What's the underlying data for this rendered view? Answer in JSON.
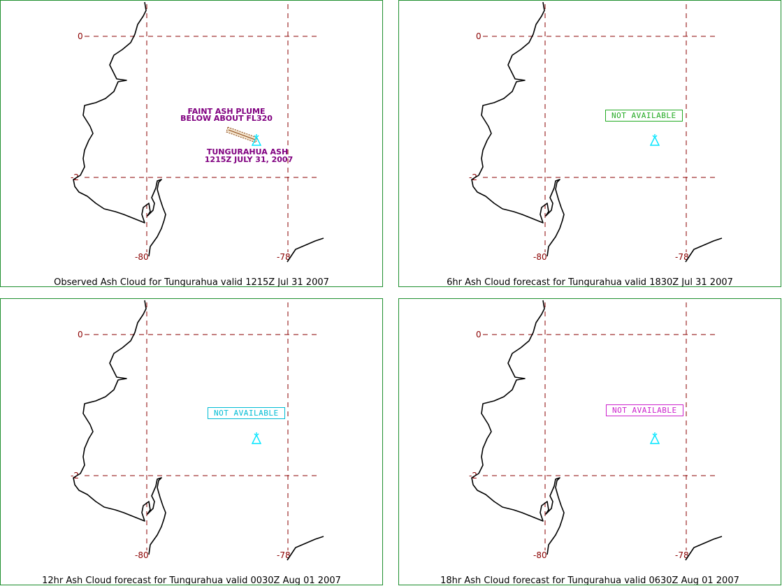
{
  "panels": [
    {
      "caption": "Observed Ash Cloud for Tungurahua valid 1215Z Jul 31 2007",
      "status": null,
      "annotations": {
        "plume_line1": "FAINT ASH PLUME",
        "plume_line2": "BELOW ABOUT FL320",
        "volcano_line1": "TUNGURAHUA ASH",
        "volcano_line2": "1215Z JULY 31, 2007"
      }
    },
    {
      "caption": "6hr Ash Cloud forecast for Tungurahua valid 1830Z Jul 31 2007",
      "status": "NOT AVAILABLE",
      "status_color": "#22aa22"
    },
    {
      "caption": "12hr Ash Cloud forecast for Tungurahua valid 0030Z Aug 01 2007",
      "status": "NOT AVAILABLE",
      "status_color": "#00bcd4"
    },
    {
      "caption": "18hr Ash Cloud forecast for Tungurahua valid 0630Z Aug 01 2007",
      "status": "NOT AVAILABLE",
      "status_color": "#cc22cc"
    }
  ],
  "axes": {
    "lat_labels": [
      "0",
      "-2"
    ],
    "lon_labels": [
      "-80",
      "-78"
    ]
  },
  "colors": {
    "panel_border": "#1f8f2f",
    "grid": "#8b0000",
    "coastline": "#000000",
    "volcano_symbol": "#00e5ff",
    "annotation": "#800080",
    "plume": "#8b4513"
  },
  "icons": {
    "volcano": "volcano-icon"
  }
}
